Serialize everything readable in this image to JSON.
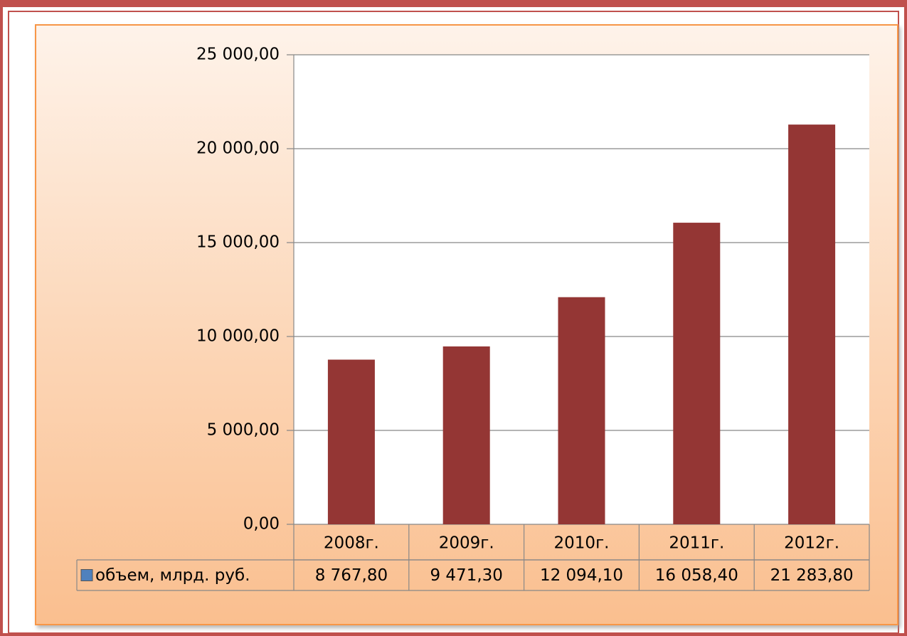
{
  "chart_data": {
    "type": "bar",
    "categories": [
      "2008г.",
      "2009г.",
      "2010г.",
      "2011г.",
      "2012г."
    ],
    "series": [
      {
        "name": "объем, млрд. руб.",
        "color": "#943634",
        "legend_color": "#4f81bd",
        "values": [
          8767.8,
          9471.3,
          12094.1,
          16058.4,
          21283.8
        ],
        "value_labels": [
          "8 767,80",
          "9 471,30",
          "12 094,10",
          "16 058,40",
          "21 283,80"
        ]
      }
    ],
    "ylim": [
      0,
      25000
    ],
    "yticks": [
      {
        "value": 0,
        "label": "0,00"
      },
      {
        "value": 5000,
        "label": "5 000,00"
      },
      {
        "value": 10000,
        "label": "10 000,00"
      },
      {
        "value": 15000,
        "label": "15 000,00"
      },
      {
        "value": 20000,
        "label": "20 000,00"
      },
      {
        "value": 25000,
        "label": "25 000,00"
      }
    ],
    "grid": true,
    "data_table": true
  }
}
